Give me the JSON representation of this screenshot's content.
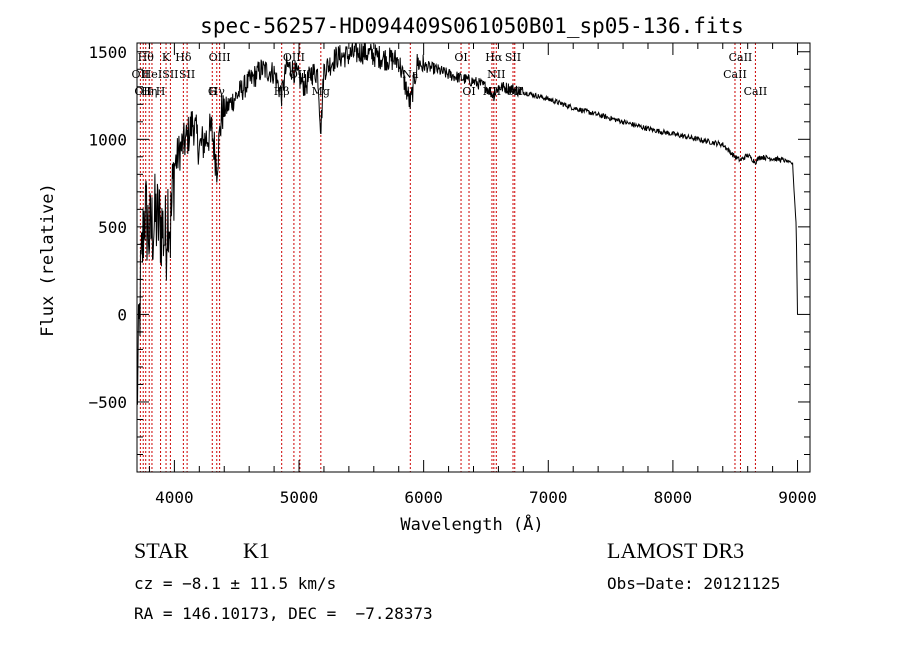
{
  "chart_data": {
    "type": "line",
    "title": "spec-56257-HD094409S061050B01_sp05-136.fits",
    "xlabel": "Wavelength (Å)",
    "ylabel": "Flux (relative)",
    "xlim": [
      3700,
      9100
    ],
    "ylim": [
      -900,
      1550
    ],
    "x_ticks": [
      4000,
      5000,
      6000,
      7000,
      8000,
      9000
    ],
    "x_tick_labels": [
      "4000",
      "5000",
      "6000",
      "7000",
      "8000",
      "9000"
    ],
    "y_ticks": [
      -500,
      0,
      500,
      1000,
      1500
    ],
    "y_tick_labels": [
      "−500",
      "0",
      "500",
      "1000",
      "1500"
    ],
    "grid": false,
    "series": [
      {
        "name": "spectrum",
        "x": [
          3700,
          3730,
          3760,
          3800,
          3850,
          3900,
          3933,
          3950,
          3968,
          4000,
          4050,
          4100,
          4150,
          4200,
          4250,
          4300,
          4340,
          4380,
          4420,
          4500,
          4600,
          4700,
          4800,
          4861,
          4900,
          4950,
          5000,
          5050,
          5100,
          5150,
          5175,
          5200,
          5250,
          5300,
          5400,
          5500,
          5600,
          5700,
          5800,
          5893,
          5950,
          6000,
          6100,
          6200,
          6300,
          6400,
          6500,
          6563,
          6600,
          6700,
          6800,
          7000,
          7200,
          7400,
          7600,
          7800,
          8000,
          8200,
          8400,
          8498,
          8542,
          8600,
          8662,
          8700,
          8800,
          8900,
          8960,
          8990,
          9000
        ],
        "y": [
          -500,
          200,
          600,
          450,
          550,
          500,
          420,
          650,
          480,
          850,
          950,
          1000,
          1100,
          950,
          1000,
          1050,
          850,
          1150,
          1180,
          1250,
          1330,
          1400,
          1380,
          1250,
          1420,
          1400,
          1350,
          1300,
          1380,
          1380,
          1050,
          1400,
          1430,
          1470,
          1480,
          1500,
          1480,
          1460,
          1450,
          1200,
          1440,
          1420,
          1400,
          1370,
          1350,
          1330,
          1300,
          1250,
          1300,
          1290,
          1270,
          1230,
          1180,
          1140,
          1100,
          1060,
          1030,
          1000,
          970,
          900,
          880,
          910,
          870,
          900,
          890,
          880,
          860,
          500,
          0
        ]
      }
    ],
    "line_markers": [
      {
        "wl": 3727,
        "label": "OII",
        "row": 2
      },
      {
        "wl": 3750,
        "label": "OII",
        "row": 3
      },
      {
        "wl": 3770,
        "label": "Hθ",
        "row": 1
      },
      {
        "wl": 3798,
        "label": "Hη",
        "row": 3
      },
      {
        "wl": 3820,
        "label": "HeI",
        "row": 2
      },
      {
        "wl": 3889,
        "label": "H",
        "row": 3
      },
      {
        "wl": 3933,
        "label": "K",
        "row": 1
      },
      {
        "wl": 3968,
        "label": "SII",
        "row": 2
      },
      {
        "wl": 4072,
        "label": "Hδ",
        "row": 1
      },
      {
        "wl": 4102,
        "label": "SII",
        "row": 2
      },
      {
        "wl": 4304,
        "label": "G",
        "row": 4
      },
      {
        "wl": 4340,
        "label": "Hγ",
        "row": 3
      },
      {
        "wl": 4363,
        "label": "OIII",
        "row": 1
      },
      {
        "wl": 4861,
        "label": "Hβ",
        "row": 4
      },
      {
        "wl": 4959,
        "label": "OIII",
        "row": 1
      },
      {
        "wl": 5007,
        "label": "OIII",
        "row": 2
      },
      {
        "wl": 5175,
        "label": "Mg",
        "row": 4
      },
      {
        "wl": 5893,
        "label": "Na",
        "row": 2
      },
      {
        "wl": 6300,
        "label": "OI",
        "row": 1
      },
      {
        "wl": 6364,
        "label": "OI",
        "row": 4
      },
      {
        "wl": 6548,
        "label": "NII",
        "row": 3
      },
      {
        "wl": 6563,
        "label": "Hα",
        "row": 1
      },
      {
        "wl": 6583,
        "label": "NII",
        "row": 2
      },
      {
        "wl": 6717,
        "label": "SII",
        "row": 1
      },
      {
        "wl": 6731,
        "label": "SII",
        "row": 4
      },
      {
        "wl": 8498,
        "label": "CaII",
        "row": 2
      },
      {
        "wl": 8542,
        "label": "CaII",
        "row": 1
      },
      {
        "wl": 8662,
        "label": "CaII",
        "row": 3
      }
    ],
    "colors": {
      "spectrum": "#000000",
      "markers": "#cc0000",
      "axes": "#000000"
    }
  },
  "info": {
    "class": "STAR",
    "subclass": "K1",
    "survey": "LAMOST DR3",
    "cz": "cz = −8.1 ± 11.5 km/s",
    "obsdate": "Obs−Date: 20121125",
    "radec": "RA = 146.10173, DEC =  −7.28373"
  }
}
